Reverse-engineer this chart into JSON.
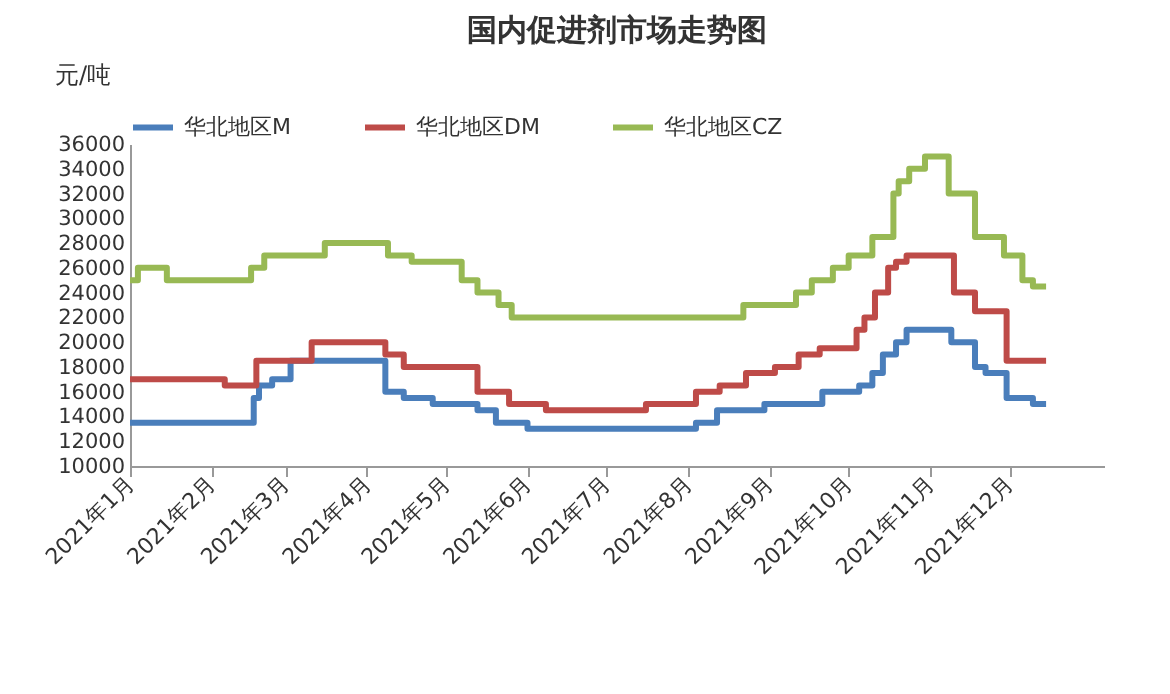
{
  "chart_data": {
    "type": "step",
    "title": "国内促进剂市场走势图",
    "ylabel": "元/吨",
    "xlim": [
      "2021-01-01",
      "2022-01-06"
    ],
    "xticks": [
      {
        "value": "2021-01-01",
        "label": "2021年1月"
      },
      {
        "value": "2021-02-01",
        "label": "2021年2月"
      },
      {
        "value": "2021-03-01",
        "label": "2021年3月"
      },
      {
        "value": "2021-04-01",
        "label": "2021年4月"
      },
      {
        "value": "2021-05-01",
        "label": "2021年5月"
      },
      {
        "value": "2021-06-01",
        "label": "2021年6月"
      },
      {
        "value": "2021-07-01",
        "label": "2021年7月"
      },
      {
        "value": "2021-08-01",
        "label": "2021年8月"
      },
      {
        "value": "2021-09-01",
        "label": "2021年9月"
      },
      {
        "value": "2021-10-01",
        "label": "2021年10月"
      },
      {
        "value": "2021-11-01",
        "label": "2021年11月"
      },
      {
        "value": "2021-12-01",
        "label": "2021年12月"
      }
    ],
    "ylim": [
      10000,
      36000
    ],
    "yticks": [
      10000,
      12000,
      14000,
      16000,
      18000,
      20000,
      22000,
      24000,
      26000,
      28000,
      30000,
      32000,
      34000,
      36000
    ],
    "grid": false,
    "legend": "top",
    "series": [
      {
        "name": "华北地区M",
        "color": "#4a7ebb",
        "x": [
          "2021-01-01",
          "2021-02-17",
          "2021-02-19",
          "2021-02-24",
          "2021-03-03",
          "2021-04-08",
          "2021-04-15",
          "2021-04-26",
          "2021-05-13",
          "2021-05-20",
          "2021-06-01",
          "2021-08-04",
          "2021-08-12",
          "2021-08-30",
          "2021-09-21",
          "2021-10-05",
          "2021-10-10",
          "2021-10-14",
          "2021-10-19",
          "2021-10-23",
          "2021-11-09",
          "2021-11-18",
          "2021-11-22",
          "2021-11-30",
          "2021-12-10",
          "2021-12-15"
        ],
        "values": [
          13500,
          15500,
          16500,
          17000,
          18500,
          16000,
          15500,
          15000,
          14500,
          13500,
          13000,
          13500,
          14500,
          15000,
          16000,
          16500,
          17500,
          19000,
          20000,
          21000,
          20000,
          18000,
          17500,
          15500,
          15000,
          15000
        ]
      },
      {
        "name": "华北地区DM",
        "color": "#be4b48",
        "x": [
          "2021-01-01",
          "2021-02-06",
          "2021-02-18",
          "2021-03-11",
          "2021-04-08",
          "2021-04-15",
          "2021-05-13",
          "2021-05-25",
          "2021-06-08",
          "2021-07-16",
          "2021-08-04",
          "2021-08-13",
          "2021-08-23",
          "2021-09-03",
          "2021-09-12",
          "2021-09-20",
          "2021-10-04",
          "2021-10-07",
          "2021-10-11",
          "2021-10-16",
          "2021-10-19",
          "2021-10-23",
          "2021-11-10",
          "2021-11-18",
          "2021-11-30",
          "2021-12-15"
        ],
        "values": [
          17000,
          16500,
          18500,
          20000,
          19000,
          18000,
          16000,
          15000,
          14500,
          15000,
          16000,
          16500,
          17500,
          18000,
          19000,
          19500,
          21000,
          22000,
          24000,
          26000,
          26500,
          27000,
          24000,
          22500,
          18500,
          18500
        ]
      },
      {
        "name": "华北地区CZ",
        "color": "#98b954",
        "x": [
          "2021-01-01",
          "2021-01-04",
          "2021-01-15",
          "2021-02-16",
          "2021-02-21",
          "2021-03-16",
          "2021-04-09",
          "2021-04-18",
          "2021-05-07",
          "2021-05-13",
          "2021-05-21",
          "2021-05-26",
          "2021-08-22",
          "2021-09-11",
          "2021-09-17",
          "2021-09-25",
          "2021-10-01",
          "2021-10-10",
          "2021-10-18",
          "2021-10-20",
          "2021-10-24",
          "2021-10-30",
          "2021-11-08",
          "2021-11-18",
          "2021-11-29",
          "2021-12-06",
          "2021-12-10",
          "2021-12-15"
        ],
        "values": [
          25000,
          26000,
          25000,
          26000,
          27000,
          28000,
          27000,
          26500,
          25000,
          24000,
          23000,
          22000,
          23000,
          24000,
          25000,
          26000,
          27000,
          28500,
          32000,
          33000,
          34000,
          35000,
          32000,
          28500,
          27000,
          25000,
          24500,
          24500
        ]
      }
    ]
  }
}
